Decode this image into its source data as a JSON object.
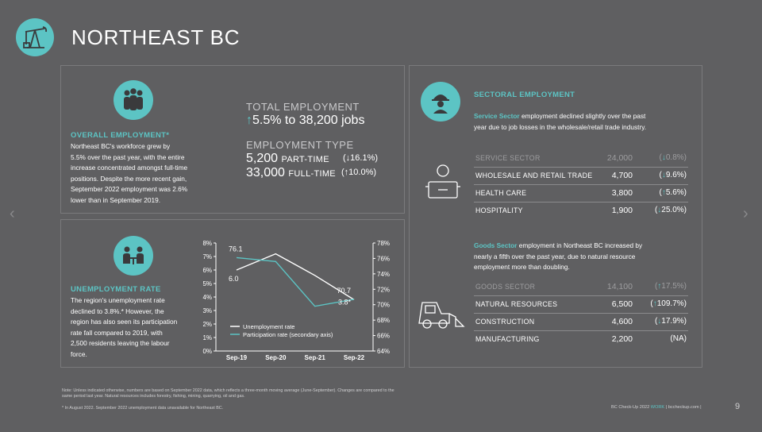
{
  "header": {
    "title": "NORTHEAST BC"
  },
  "overall": {
    "heading": "OVERALL EMPLOYMENT*",
    "text_lines": [
      "Northeast BC's workforce grew by",
      "5.5% over the past year, with the entire",
      "increase concentrated amongst full-time",
      "positions. Despite the more recent gain,",
      "September 2022 employment was 2.6%",
      "lower than in September 2019."
    ],
    "total_label": "TOTAL EMPLOYMENT",
    "total_arrow": "↑",
    "total_value": "5.5% to 38,200 jobs",
    "type_label": "EMPLOYMENT TYPE",
    "part_num": "5,200",
    "part_label": "PART-TIME",
    "part_chg": "(↓16.1%)",
    "full_num": "33,000",
    "full_label": "FULL-TIME",
    "full_chg": "(↑10.0%)"
  },
  "unemployment": {
    "heading": "UNEMPLOYMENT RATE",
    "text_lines": [
      "The region's unemployment rate",
      "declined to 3.8%.* However, the",
      "region has also seen its participation",
      "rate fall compared to 2019, with",
      "2,500 residents leaving the labour",
      "force."
    ]
  },
  "chart_data": {
    "type": "line",
    "categories": [
      "Sep-19",
      "Sep-20",
      "Sep-21",
      "Sep-22"
    ],
    "x_positions": [
      0,
      1,
      2,
      3
    ],
    "series": [
      {
        "name": "Unemployment rate",
        "axis": "primary",
        "color": "#ffffff",
        "values": [
          6.0,
          7.2,
          5.6,
          3.8
        ],
        "labels": [
          "6.0",
          "",
          "",
          "3.8*"
        ]
      },
      {
        "name": "Participation rate (secondary axis)",
        "axis": "secondary",
        "color": "#5cc4c4",
        "values": [
          76.1,
          75.6,
          69.8,
          70.7
        ],
        "labels": [
          "76.1",
          "",
          "",
          "70.7"
        ]
      }
    ],
    "ylim": [
      0,
      8
    ],
    "y2lim": [
      64,
      78
    ],
    "yticks": [
      "0%",
      "1%",
      "2%",
      "3%",
      "4%",
      "5%",
      "6%",
      "7%",
      "8%"
    ],
    "y2ticks": [
      "64%",
      "66%",
      "68%",
      "70%",
      "72%",
      "74%",
      "76%",
      "78%"
    ],
    "legend": "bottom-center"
  },
  "sectoral": {
    "heading": "SECTORAL EMPLOYMENT",
    "service_bold": "Service Sector",
    "service_text_1": " employment declined slightly over the past",
    "service_text_2": "year due to job losses in the wholesale/retail trade industry.",
    "service_rows": [
      {
        "label": "SERVICE SECTOR",
        "num": "24,000",
        "arrow": "↓",
        "chg": "0.8%",
        "head": true
      },
      {
        "label": "WHOLESALE AND RETAIL TRADE",
        "num": "4,700",
        "arrow": "↓",
        "chg": "9.6%",
        "head": false
      },
      {
        "label": "HEALTH CARE",
        "num": "3,800",
        "arrow": "↑",
        "chg": "5.6%",
        "head": false
      },
      {
        "label": "HOSPITALITY",
        "num": "1,900",
        "arrow": "↓",
        "chg": "25.0%",
        "head": false
      }
    ],
    "goods_bold": "Goods Sector",
    "goods_text_1": " employment in Northeast BC increased by",
    "goods_text_2": "nearly a fifth over the past year, due to natural resource",
    "goods_text_3": "employment more than doubling.",
    "goods_rows": [
      {
        "label": "GOODS SECTOR",
        "num": "14,100",
        "arrow": "↑",
        "chg": "17.5%",
        "head": true
      },
      {
        "label": "NATURAL RESOURCES",
        "num": "6,500",
        "arrow": "↑",
        "chg": "109.7%",
        "head": false
      },
      {
        "label": "CONSTRUCTION",
        "num": "4,600",
        "arrow": "↓",
        "chg": "17.9%",
        "head": false
      },
      {
        "label": "MANUFACTURING",
        "num": "2,200",
        "arrow": "",
        "chg": "NA",
        "head": false
      }
    ]
  },
  "footer": {
    "note_1": "Note: Unless indicated otherwise, numbers are based on September 2022 data, which reflects a three-month moving average (June-September). Changes are compared to the",
    "note_2": "same period last year.  Natural resources includes forestry, fishing, mining, quarrying, oil and gas.",
    "footnote": "* In August 2022. September 2022 unemployment data unavailable for Northeast BC.",
    "brand_pre": "BC Check-Up 2022",
    "brand_work": "WORK",
    "brand_site": "| bccheckup.com |",
    "page_num": "9"
  },
  "icons": [
    "oil-pump-icon",
    "people-group-icon",
    "meeting-icon",
    "server-tray-icon",
    "worker-icon",
    "skid-steer-icon",
    "chevron-left-icon",
    "chevron-right-icon"
  ],
  "colors": {
    "accent": "#5cc4c4",
    "background": "#5f5f61"
  }
}
